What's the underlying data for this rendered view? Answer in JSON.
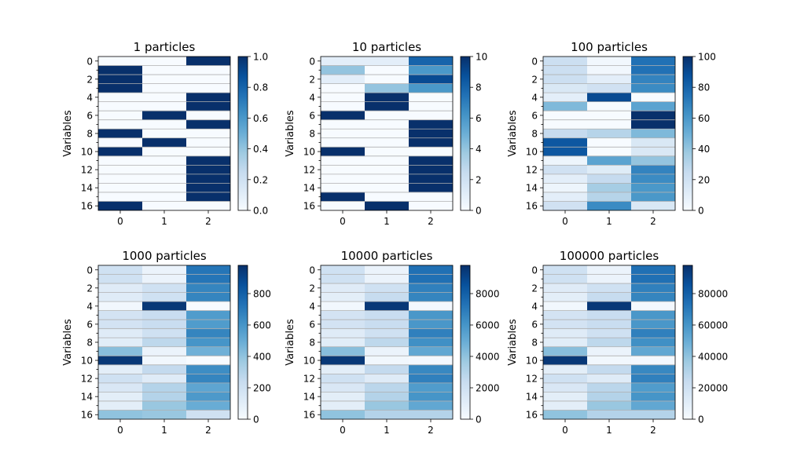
{
  "chart_data": [
    {
      "type": "heatmap",
      "title": "1 particles",
      "ylabel": "Variables",
      "x_ticks": [
        "0",
        "1",
        "2"
      ],
      "y_ticks": [
        "0",
        "2",
        "4",
        "6",
        "8",
        "10",
        "12",
        "14",
        "16"
      ],
      "colorbar_ticks": [
        "0.0",
        "0.2",
        "0.4",
        "0.6",
        "0.8",
        "1.0"
      ],
      "colorbar_range": [
        0,
        1
      ],
      "colormap": "Blues",
      "values": [
        [
          0,
          0,
          1
        ],
        [
          1,
          0,
          0
        ],
        [
          1,
          0,
          0
        ],
        [
          1,
          0,
          0
        ],
        [
          0,
          0,
          1
        ],
        [
          0,
          0,
          1
        ],
        [
          0,
          1,
          0
        ],
        [
          0,
          0,
          1
        ],
        [
          1,
          0,
          0
        ],
        [
          0,
          1,
          0
        ],
        [
          1,
          0,
          0
        ],
        [
          0,
          0,
          1
        ],
        [
          0,
          0,
          1
        ],
        [
          0,
          0,
          1
        ],
        [
          0,
          0,
          1
        ],
        [
          0,
          0,
          1
        ],
        [
          1,
          0,
          0
        ],
        [
          0,
          1,
          0
        ]
      ]
    },
    {
      "type": "heatmap",
      "title": "10 particles",
      "ylabel": "Variables",
      "x_ticks": [
        "0",
        "1",
        "2"
      ],
      "y_ticks": [
        "0",
        "2",
        "4",
        "6",
        "8",
        "10",
        "12",
        "14",
        "16"
      ],
      "colorbar_ticks": [
        "0",
        "2",
        "4",
        "6",
        "8",
        "10"
      ],
      "colorbar_range": [
        0,
        10
      ],
      "colormap": "Blues",
      "values": [
        [
          1,
          1,
          8
        ],
        [
          4,
          0,
          6
        ],
        [
          1,
          0,
          9
        ],
        [
          0,
          4,
          6
        ],
        [
          0,
          10,
          0
        ],
        [
          0,
          10,
          0
        ],
        [
          10,
          0,
          0
        ],
        [
          0,
          0,
          10
        ],
        [
          0,
          0,
          10
        ],
        [
          0,
          0,
          10
        ],
        [
          10,
          0,
          0
        ],
        [
          0,
          0,
          10
        ],
        [
          0,
          0,
          10
        ],
        [
          0,
          0,
          10
        ],
        [
          0,
          0,
          10
        ],
        [
          10,
          0,
          0
        ],
        [
          0,
          10,
          0
        ],
        [
          0,
          10,
          0
        ]
      ]
    },
    {
      "type": "heatmap",
      "title": "100 particles",
      "ylabel": "Variables",
      "x_ticks": [
        "0",
        "1",
        "2"
      ],
      "y_ticks": [
        "0",
        "2",
        "4",
        "6",
        "8",
        "10",
        "12",
        "14",
        "16"
      ],
      "colorbar_ticks": [
        "0",
        "20",
        "40",
        "60",
        "80",
        "100"
      ],
      "colorbar_range": [
        0,
        100
      ],
      "colormap": "Blues",
      "values": [
        [
          22,
          3,
          75
        ],
        [
          22,
          3,
          75
        ],
        [
          22,
          10,
          68
        ],
        [
          15,
          20,
          65
        ],
        [
          10,
          90,
          0
        ],
        [
          45,
          0,
          55
        ],
        [
          0,
          0,
          100
        ],
        [
          0,
          0,
          100
        ],
        [
          25,
          30,
          45
        ],
        [
          85,
          0,
          15
        ],
        [
          85,
          0,
          15
        ],
        [
          5,
          55,
          40
        ],
        [
          20,
          12,
          68
        ],
        [
          10,
          25,
          65
        ],
        [
          5,
          35,
          60
        ],
        [
          10,
          30,
          60
        ],
        [
          20,
          65,
          15
        ],
        [
          20,
          65,
          15
        ]
      ]
    },
    {
      "type": "heatmap",
      "title": "1000 particles",
      "ylabel": "Variables",
      "x_ticks": [
        "0",
        "1",
        "2"
      ],
      "y_ticks": [
        "0",
        "2",
        "4",
        "6",
        "8",
        "10",
        "12",
        "14",
        "16"
      ],
      "colorbar_ticks": [
        "0",
        "200",
        "400",
        "600",
        "800"
      ],
      "colorbar_range": [
        0,
        980
      ],
      "colormap": "Blues",
      "values": [
        [
          200,
          60,
          720
        ],
        [
          200,
          60,
          720
        ],
        [
          120,
          200,
          660
        ],
        [
          120,
          200,
          660
        ],
        [
          30,
          950,
          0
        ],
        [
          180,
          230,
          570
        ],
        [
          180,
          230,
          570
        ],
        [
          120,
          200,
          660
        ],
        [
          110,
          270,
          600
        ],
        [
          420,
          60,
          480
        ],
        [
          950,
          30,
          0
        ],
        [
          100,
          250,
          630
        ],
        [
          200,
          120,
          660
        ],
        [
          150,
          300,
          530
        ],
        [
          100,
          300,
          580
        ],
        [
          100,
          380,
          500
        ],
        [
          400,
          380,
          200
        ],
        [
          400,
          200,
          380
        ]
      ]
    },
    {
      "type": "heatmap",
      "title": "10000 particles",
      "ylabel": "Variables",
      "x_ticks": [
        "0",
        "1",
        "2"
      ],
      "y_ticks": [
        "0",
        "2",
        "4",
        "6",
        "8",
        "10",
        "12",
        "14",
        "16"
      ],
      "colorbar_ticks": [
        "0",
        "2000",
        "4000",
        "6000",
        "8000"
      ],
      "colorbar_range": [
        0,
        9800
      ],
      "colormap": "Blues",
      "values": [
        [
          2000,
          600,
          7400
        ],
        [
          2000,
          600,
          7400
        ],
        [
          1200,
          2000,
          6800
        ],
        [
          1000,
          2400,
          6600
        ],
        [
          300,
          9500,
          200
        ],
        [
          1800,
          2300,
          5900
        ],
        [
          1800,
          2300,
          5900
        ],
        [
          1200,
          2000,
          6800
        ],
        [
          1100,
          2700,
          6200
        ],
        [
          4200,
          600,
          5200
        ],
        [
          9500,
          300,
          200
        ],
        [
          1000,
          2500,
          6500
        ],
        [
          2000,
          1200,
          6800
        ],
        [
          1500,
          2800,
          5700
        ],
        [
          1000,
          3000,
          6000
        ],
        [
          1000,
          3800,
          5200
        ],
        [
          4000,
          3000,
          3000
        ],
        [
          4000,
          2000,
          4000
        ]
      ]
    },
    {
      "type": "heatmap",
      "title": "100000 particles",
      "ylabel": "Variables",
      "x_ticks": [
        "0",
        "1",
        "2"
      ],
      "y_ticks": [
        "0",
        "2",
        "4",
        "6",
        "8",
        "10",
        "12",
        "14",
        "16"
      ],
      "colorbar_ticks": [
        "0",
        "20000",
        "40000",
        "60000",
        "80000"
      ],
      "colorbar_range": [
        0,
        98000
      ],
      "colormap": "Blues",
      "values": [
        [
          20000,
          6000,
          74000
        ],
        [
          20000,
          6000,
          74000
        ],
        [
          12000,
          20000,
          68000
        ],
        [
          10000,
          24000,
          66000
        ],
        [
          3000,
          95000,
          2000
        ],
        [
          18000,
          23000,
          59000
        ],
        [
          18000,
          23000,
          59000
        ],
        [
          12000,
          20000,
          68000
        ],
        [
          11000,
          27000,
          62000
        ],
        [
          42000,
          6000,
          52000
        ],
        [
          95000,
          3000,
          2000
        ],
        [
          10000,
          25000,
          65000
        ],
        [
          20000,
          12000,
          68000
        ],
        [
          15000,
          28000,
          57000
        ],
        [
          10000,
          30000,
          60000
        ],
        [
          10000,
          38000,
          52000
        ],
        [
          40000,
          30000,
          30000
        ],
        [
          40000,
          20000,
          40000
        ]
      ]
    }
  ]
}
